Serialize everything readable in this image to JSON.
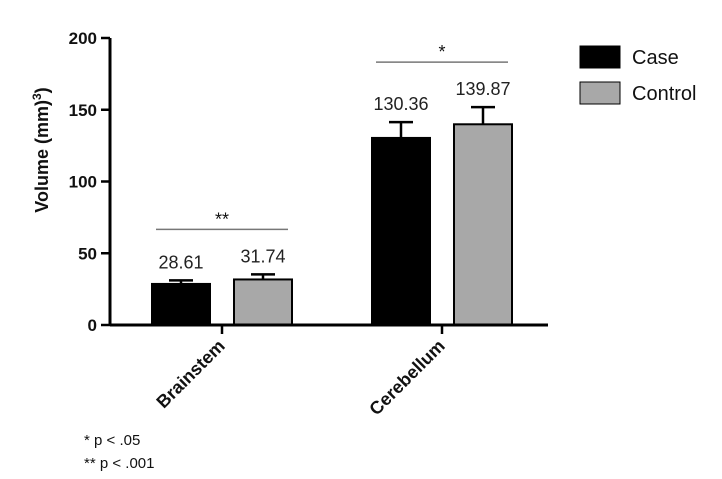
{
  "chart_data": {
    "type": "bar",
    "ylabel": "Volume (mm³)",
    "ylim": [
      0,
      200
    ],
    "yticks": [
      0,
      50,
      100,
      150,
      200
    ],
    "categories": [
      "Brainstem",
      "Cerebellum"
    ],
    "series": [
      {
        "name": "Case",
        "color": "#000000",
        "values": [
          28.61,
          130.36
        ],
        "error": [
          2.5,
          11
        ]
      },
      {
        "name": "Control",
        "color": "#a8a8a8",
        "values": [
          31.74,
          139.87
        ],
        "error": [
          3.5,
          12
        ]
      }
    ],
    "value_labels": [
      [
        "28.61",
        "130.36"
      ],
      [
        "31.74",
        "139.87"
      ]
    ],
    "significance": [
      {
        "category": "Brainstem",
        "label": "**"
      },
      {
        "category": "Cerebellum",
        "label": "*"
      }
    ],
    "legend": {
      "position": "top-right"
    },
    "footnotes": [
      "* p < .05",
      "** p < .001"
    ]
  }
}
